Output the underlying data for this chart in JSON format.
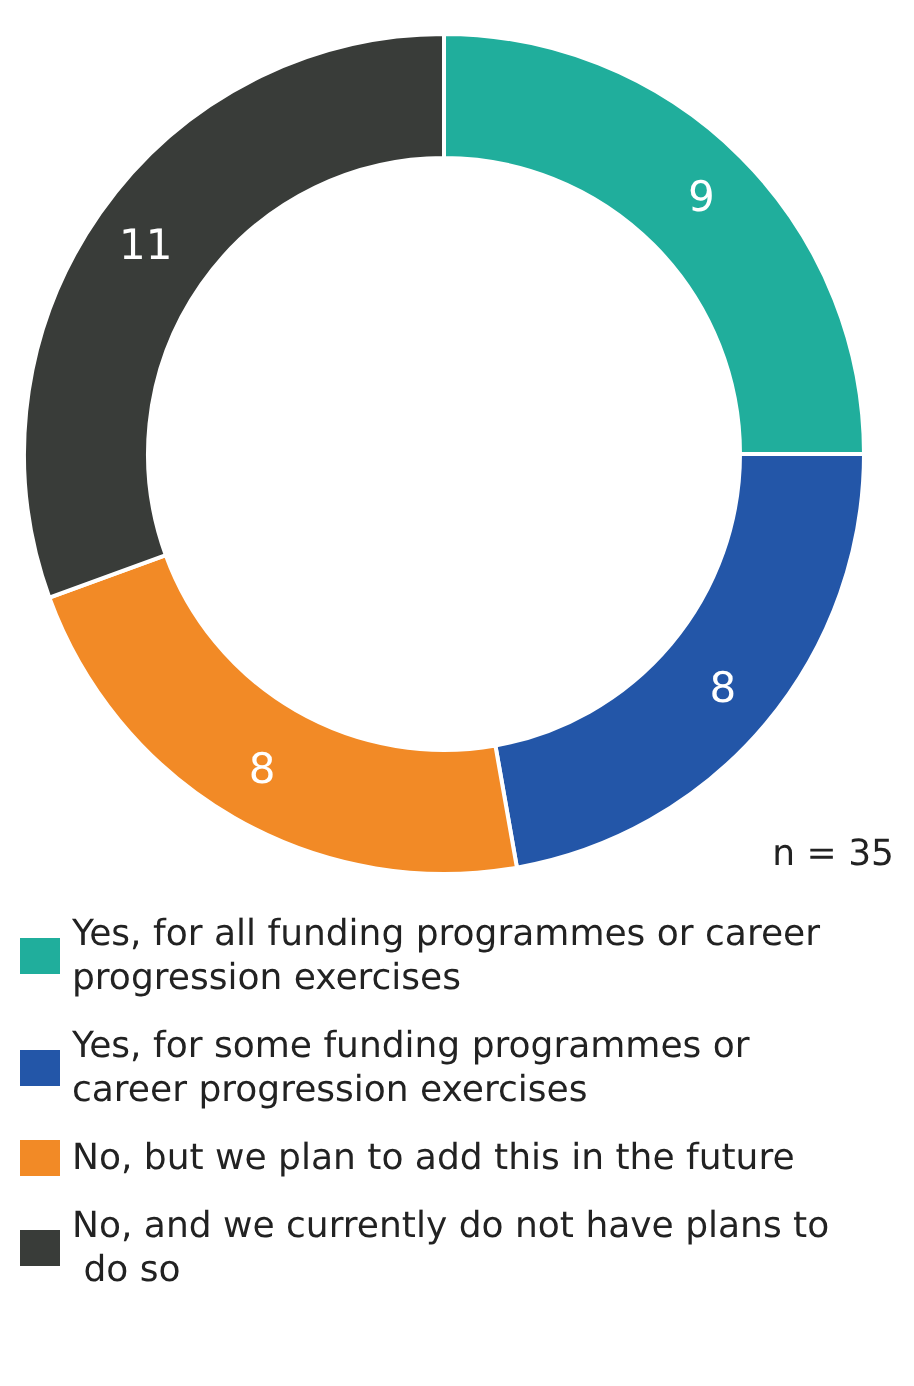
{
  "chart_data": {
    "type": "donut",
    "categories": [
      "Yes, for all funding programmes or career progression exercises",
      "Yes, for some funding programmes or career progression exercises",
      "No, but we plan to add this in the future",
      "No, and we currently do not have plans to do so"
    ],
    "values": [
      9,
      8,
      8,
      11
    ],
    "colors": [
      "#20ae9c",
      "#2356a8",
      "#f28a26",
      "#393c39"
    ],
    "data_labels": true,
    "legend": "bottom",
    "annotations": [
      "n = 35"
    ]
  }
}
